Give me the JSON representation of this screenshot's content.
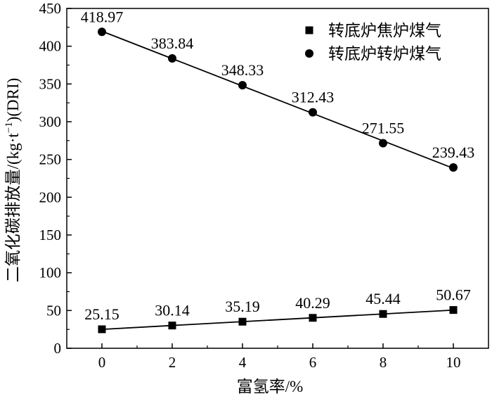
{
  "chart_data": {
    "type": "scatter",
    "title": "",
    "xlabel": "富氢率/%",
    "ylabel_main": "二氧化碳排放量/(kg·t",
    "ylabel_sup": "−1",
    "ylabel_tail": ")(DRI)",
    "xlim": [
      -1,
      11
    ],
    "ylim": [
      0,
      450
    ],
    "xticks": [
      0,
      2,
      4,
      6,
      8,
      10
    ],
    "yticks": [
      0,
      50,
      100,
      150,
      200,
      250,
      300,
      350,
      400,
      450
    ],
    "grid": false,
    "legend_position": "top-right",
    "x": [
      0,
      2,
      4,
      6,
      8,
      10
    ],
    "series": [
      {
        "name": "转底炉焦炉煤气",
        "marker": "square",
        "values": [
          25.15,
          30.14,
          35.19,
          40.29,
          45.44,
          50.67
        ],
        "labels": [
          "25.15",
          "30.14",
          "35.19",
          "40.29",
          "45.44",
          "50.67"
        ]
      },
      {
        "name": "转底炉转炉煤气",
        "marker": "circle",
        "values": [
          418.97,
          383.84,
          348.33,
          312.43,
          271.55,
          239.43
        ],
        "labels": [
          "418.97",
          "383.84",
          "348.33",
          "312.43",
          "271.55",
          "239.43"
        ]
      }
    ],
    "colors": {
      "marker": "#000000",
      "line": "#000000",
      "axis": "#000000"
    }
  }
}
